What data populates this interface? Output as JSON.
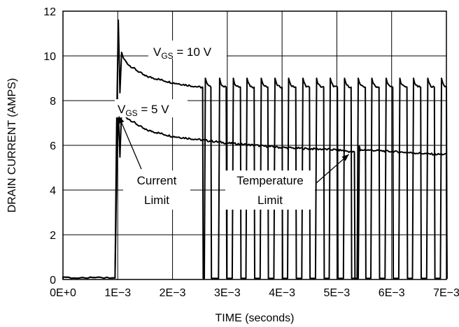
{
  "chart_data": {
    "type": "line",
    "xlabel": "TIME (seconds)",
    "ylabel": "DRAIN CURRENT (AMPS)",
    "xlim": [
      0,
      0.007
    ],
    "ylim": [
      0,
      12
    ],
    "x_ticks": [
      0,
      0.001,
      0.002,
      0.003,
      0.004,
      0.005,
      0.006,
      0.007
    ],
    "x_tick_labels": [
      "0E+0",
      "1E−3",
      "2E−3",
      "3E−3",
      "4E−3",
      "5E−3",
      "6E−3",
      "7E−3"
    ],
    "y_ticks": [
      0,
      2,
      4,
      6,
      8,
      10,
      12
    ],
    "y_tick_labels": [
      "0",
      "2",
      "4",
      "6",
      "8",
      "10",
      "12"
    ],
    "grid": true,
    "series": [
      {
        "label_main": "V",
        "label_sub": "GS",
        "label_rest": " = 10 V",
        "on_intervals": [
          [
            0.00098,
            0.00255
          ],
          [
            0.0026,
            0.0027
          ],
          [
            0.00286,
            0.00298
          ],
          [
            0.00311,
            0.00324
          ],
          [
            0.00336,
            0.00349
          ],
          [
            0.00362,
            0.00374
          ],
          [
            0.00387,
            0.004
          ],
          [
            0.00412,
            0.00425
          ],
          [
            0.00438,
            0.0045
          ],
          [
            0.00463,
            0.00476
          ],
          [
            0.00488,
            0.00501
          ],
          [
            0.00514,
            0.00526
          ],
          [
            0.00539,
            0.00552
          ],
          [
            0.00564,
            0.00577
          ],
          [
            0.0059,
            0.00602
          ],
          [
            0.00615,
            0.00628
          ],
          [
            0.0064,
            0.00653
          ],
          [
            0.00666,
            0.00678
          ],
          [
            0.00691,
            0.007
          ]
        ],
        "peak": 11.6,
        "envelope_points": [
          [
            0.001,
            10.2
          ],
          [
            0.0012,
            9.6
          ],
          [
            0.0015,
            9.1
          ],
          [
            0.002,
            8.8
          ],
          [
            0.0025,
            8.6
          ],
          [
            0.007,
            8.6
          ]
        ],
        "pulse_spike": 9.0
      },
      {
        "label_main": "V",
        "label_sub": "GS",
        "label_rest": " = 5 V",
        "on_intervals": [
          [
            0.00098,
            0.00532
          ],
          [
            0.00541,
            0.007
          ]
        ],
        "peak": 7.6,
        "envelope_points": [
          [
            0.001,
            7.5
          ],
          [
            0.0015,
            6.7
          ],
          [
            0.002,
            6.4
          ],
          [
            0.003,
            6.1
          ],
          [
            0.004,
            5.9
          ],
          [
            0.005,
            5.8
          ],
          [
            0.0053,
            5.7
          ],
          [
            0.0055,
            5.8
          ],
          [
            0.0068,
            5.6
          ],
          [
            0.007,
            5.6
          ]
        ]
      }
    ],
    "annotations": [
      {
        "lines": [
          "Current",
          "Limit"
        ],
        "target": [
          0.00102,
          7.3
        ]
      },
      {
        "lines": [
          "Temperature",
          "Limit"
        ],
        "target": [
          0.00522,
          5.6
        ]
      }
    ]
  }
}
